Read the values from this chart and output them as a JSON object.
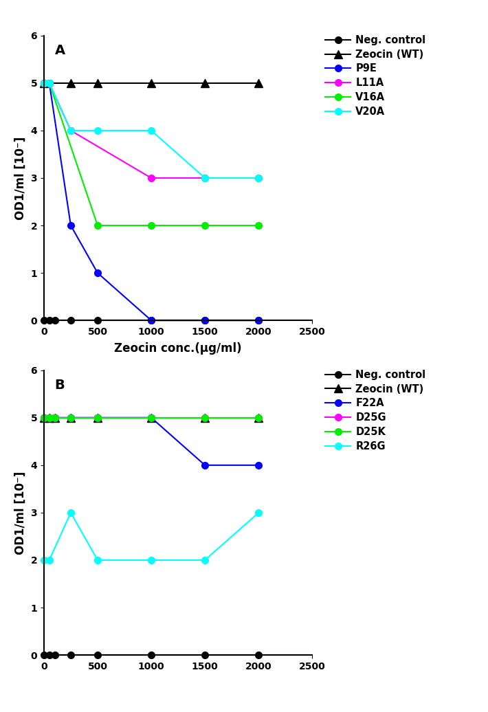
{
  "panel_A": {
    "label": "A",
    "ylabel": "OD1/ml [10⁻]",
    "xlim": [
      0,
      2500
    ],
    "ylim": [
      0,
      6
    ],
    "yticks": [
      0,
      1,
      2,
      3,
      4,
      5,
      6
    ],
    "xticks": [
      0,
      500,
      1000,
      1500,
      2000,
      2500
    ],
    "series": [
      {
        "label": "Neg. control",
        "color": "#000000",
        "marker": "o",
        "markersize": 7,
        "linewidth": 1.5,
        "x": [
          0,
          50,
          100,
          250,
          500,
          1000,
          1500,
          2000
        ],
        "y": [
          0,
          0,
          0,
          0,
          0,
          0,
          0,
          0
        ]
      },
      {
        "label": "Zeocin (WT)",
        "color": "#000000",
        "marker": "^",
        "markersize": 9,
        "linewidth": 1.5,
        "x": [
          0,
          250,
          500,
          1000,
          1500,
          2000
        ],
        "y": [
          5,
          5,
          5,
          5,
          5,
          5
        ]
      },
      {
        "label": "P9E",
        "color": "#0000FF",
        "marker": "o",
        "markersize": 7,
        "linewidth": 1.5,
        "x": [
          0,
          50,
          250,
          500,
          1000,
          1500,
          2000
        ],
        "y": [
          5,
          5,
          2,
          1,
          0,
          0,
          0
        ]
      },
      {
        "label": "L11A",
        "color": "#FF00FF",
        "marker": "o",
        "markersize": 7,
        "linewidth": 1.5,
        "x": [
          0,
          50,
          250,
          1000,
          1500,
          2000
        ],
        "y": [
          5,
          5,
          4,
          3,
          3,
          3
        ]
      },
      {
        "label": "V16A",
        "color": "#00EE00",
        "marker": "o",
        "markersize": 7,
        "linewidth": 1.5,
        "x": [
          0,
          50,
          500,
          1000,
          1500,
          2000
        ],
        "y": [
          5,
          5,
          2,
          2,
          2,
          2
        ]
      },
      {
        "label": "V20A",
        "color": "#00FFFF",
        "marker": "o",
        "markersize": 7,
        "linewidth": 1.5,
        "x": [
          0,
          50,
          250,
          500,
          1000,
          1500,
          2000
        ],
        "y": [
          5,
          5,
          4,
          4,
          4,
          3,
          3
        ]
      }
    ]
  },
  "panel_B": {
    "label": "B",
    "ylabel": "OD1/ml [10⁻]",
    "xlim": [
      0,
      2500
    ],
    "ylim": [
      0,
      6
    ],
    "yticks": [
      0,
      1,
      2,
      3,
      4,
      5,
      6
    ],
    "xticks": [
      0,
      500,
      1000,
      1500,
      2000,
      2500
    ],
    "series": [
      {
        "label": "Neg. control",
        "color": "#000000",
        "marker": "o",
        "markersize": 7,
        "linewidth": 1.5,
        "x": [
          0,
          50,
          100,
          250,
          500,
          1000,
          1500,
          2000
        ],
        "y": [
          0,
          0,
          0,
          0,
          0,
          0,
          0,
          0
        ]
      },
      {
        "label": "Zeocin (WT)",
        "color": "#000000",
        "marker": "^",
        "markersize": 9,
        "linewidth": 1.5,
        "x": [
          0,
          50,
          100,
          250,
          500,
          1000,
          1500,
          2000
        ],
        "y": [
          5,
          5,
          5,
          5,
          5,
          5,
          5,
          5
        ]
      },
      {
        "label": "F22A",
        "color": "#0000FF",
        "marker": "o",
        "markersize": 7,
        "linewidth": 1.5,
        "x": [
          0,
          50,
          100,
          250,
          500,
          1000,
          1500,
          2000
        ],
        "y": [
          5,
          5,
          5,
          5,
          5,
          5,
          4,
          4
        ]
      },
      {
        "label": "D25G",
        "color": "#FF00FF",
        "marker": "o",
        "markersize": 7,
        "linewidth": 1.5,
        "x": [
          0,
          50,
          100,
          250,
          500,
          1000,
          1500,
          2000
        ],
        "y": [
          5,
          5,
          5,
          5,
          5,
          5,
          5,
          5
        ]
      },
      {
        "label": "D25K",
        "color": "#00EE00",
        "marker": "o",
        "markersize": 7,
        "linewidth": 1.5,
        "x": [
          0,
          50,
          100,
          250,
          500,
          1000,
          1500,
          2000
        ],
        "y": [
          5,
          5,
          5,
          5,
          5,
          5,
          5,
          5
        ]
      },
      {
        "label": "R26G",
        "color": "#00FFFF",
        "marker": "o",
        "markersize": 7,
        "linewidth": 1.5,
        "x": [
          0,
          50,
          250,
          500,
          1000,
          1500,
          2000
        ],
        "y": [
          2,
          2,
          3,
          2,
          2,
          2,
          3
        ]
      }
    ]
  },
  "fig_width": 7.1,
  "fig_height": 10.36,
  "legend_fontsize": 10.5,
  "axis_label_fontsize": 12,
  "tick_fontsize": 10,
  "panel_label_fontsize": 14,
  "xlabel": "Zeocin conc.(μg/ml)"
}
